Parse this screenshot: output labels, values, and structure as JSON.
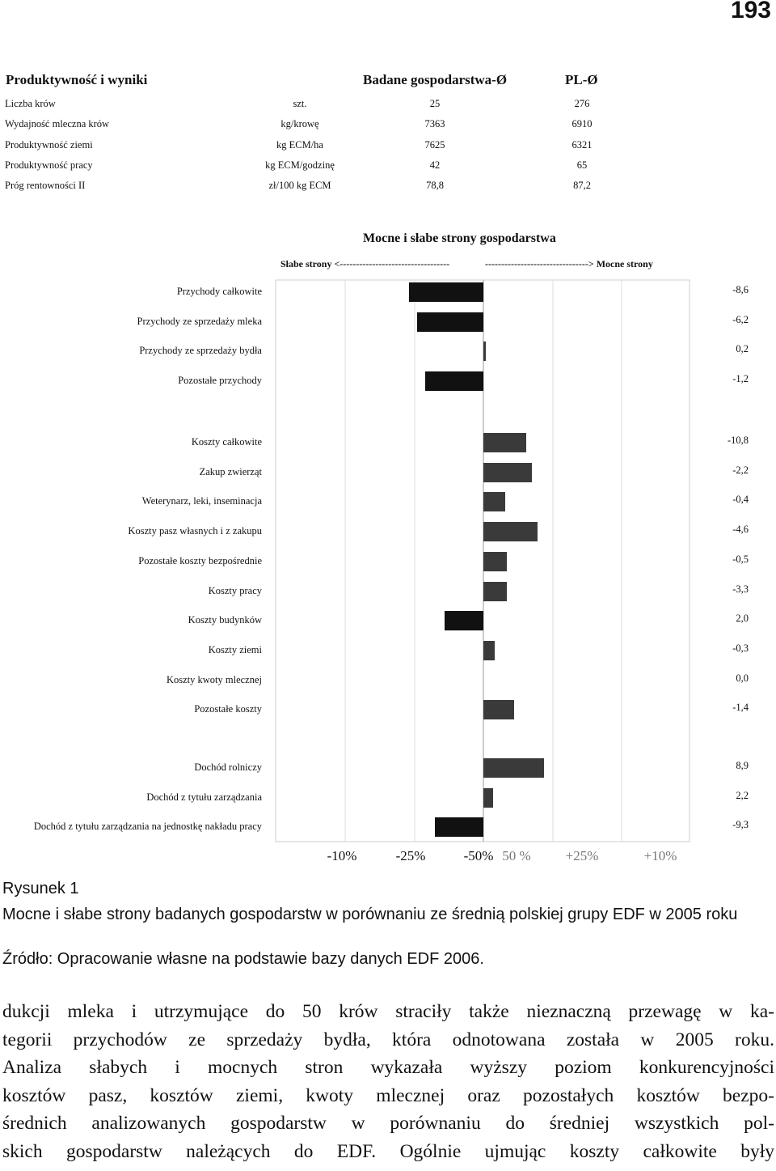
{
  "page_number": "193",
  "table": {
    "headers": [
      "Produktywność i wyniki",
      "Badane gospodarstwa-Ø",
      "PL-Ø"
    ],
    "rows": [
      {
        "label": "Liczba krów",
        "unit": "szt.",
        "farm": "25",
        "pl": "276"
      },
      {
        "label": "Wydajność mleczna krów",
        "unit": "kg/krowę",
        "farm": "7363",
        "pl": "6910"
      },
      {
        "label": "Produktywność ziemi",
        "unit": "kg ECM/ha",
        "farm": "7625",
        "pl": "6321"
      },
      {
        "label": "Produktywność pracy",
        "unit": "kg ECM/godzinę",
        "farm": "42",
        "pl": "65"
      },
      {
        "label": "Próg rentowności II",
        "unit": "zł/100 kg ECM",
        "farm": "78,8",
        "pl": "87,2"
      }
    ]
  },
  "chart_data": {
    "type": "bar",
    "orientation": "horizontal",
    "title": "Mocne i słabe strony gospodarstwa",
    "subtitle_left": "Słabe strony <----------------------------------",
    "subtitle_right": "--------------------------------> Mocne strony",
    "axis_ticks": [
      "-10%",
      "-25%",
      "-50%",
      "50 %",
      "+25%",
      "+10%"
    ],
    "colors": {
      "weak": "#111111",
      "strong": "#3a3a3a"
    },
    "categories": [
      {
        "label": "Przychody całkowite",
        "value_label": "-8,6",
        "score": -0.54,
        "group": 1
      },
      {
        "label": "Przychody ze sprzedaży mleka",
        "value_label": "-6,2",
        "score": -0.48,
        "group": 1
      },
      {
        "label": "Przychody ze sprzedaży bydła",
        "value_label": "0,2",
        "score": 0.02,
        "group": 1
      },
      {
        "label": "Pozostałe przychody",
        "value_label": "-1,2",
        "score": -0.42,
        "group": 1
      },
      {
        "label": "Koszty całkowite",
        "value_label": "-10,8",
        "score": 0.31,
        "group": 2
      },
      {
        "label": "Zakup zwierząt",
        "value_label": "-2,2",
        "score": 0.35,
        "group": 2
      },
      {
        "label": "Weterynarz, leki, inseminacja",
        "value_label": "-0,4",
        "score": 0.16,
        "group": 2
      },
      {
        "label": "Koszty pasz własnych i z zakupu",
        "value_label": "-4,6",
        "score": 0.39,
        "group": 2
      },
      {
        "label": "Pozostałe koszty bezpośrednie",
        "value_label": "-0,5",
        "score": 0.17,
        "group": 2
      },
      {
        "label": "Koszty pracy",
        "value_label": "-3,3",
        "score": 0.17,
        "group": 2
      },
      {
        "label": "Koszty budynków",
        "value_label": "2,0",
        "score": -0.28,
        "group": 2
      },
      {
        "label": "Koszty ziemi",
        "value_label": "-0,3",
        "score": 0.08,
        "group": 2
      },
      {
        "label": "Koszty kwoty mlecznej",
        "value_label": "0,0",
        "score": 0,
        "group": 2
      },
      {
        "label": "Pozostałe koszty",
        "value_label": "-1,4",
        "score": 0.22,
        "group": 2
      },
      {
        "label": "Dochód rolniczy",
        "value_label": "8,9",
        "score": 0.44,
        "group": 3
      },
      {
        "label": "Dochód z tytułu zarządzania",
        "value_label": "2,2",
        "score": 0.07,
        "group": 3
      },
      {
        "label": "Dochód z tytułu zarządzania na jednostkę nakładu pracy",
        "value_label": "-9,3",
        "score": -0.35,
        "group": 3
      }
    ]
  },
  "figure": {
    "label": "Rysunek 1",
    "caption": "Mocne i słabe strony badanych gospodarstw w porównaniu ze średnią polskiej grupy EDF w 2005 roku",
    "source": "Źródło: Opracowanie własne na podstawie bazy danych EDF 2006."
  },
  "body_lines": [
    "dukcji mleka i utrzymujące do 50 krów straciły także nieznaczną przewagę w ka-",
    "tegorii przychodów ze sprzedaży bydła, która odnotowana została w 2005 roku.",
    "Analiza słabych i mocnych stron wykazała wyższy poziom konkurencyjności",
    "kosztów pasz, kosztów ziemi, kwoty mlecznej oraz pozostałych kosztów bezpo-",
    "średnich analizowanych gospodarstw w porównaniu do średniej wszystkich pol-",
    "skich gospodarstw należących do EDF. Ogólnie ujmując koszty całkowite były"
  ]
}
